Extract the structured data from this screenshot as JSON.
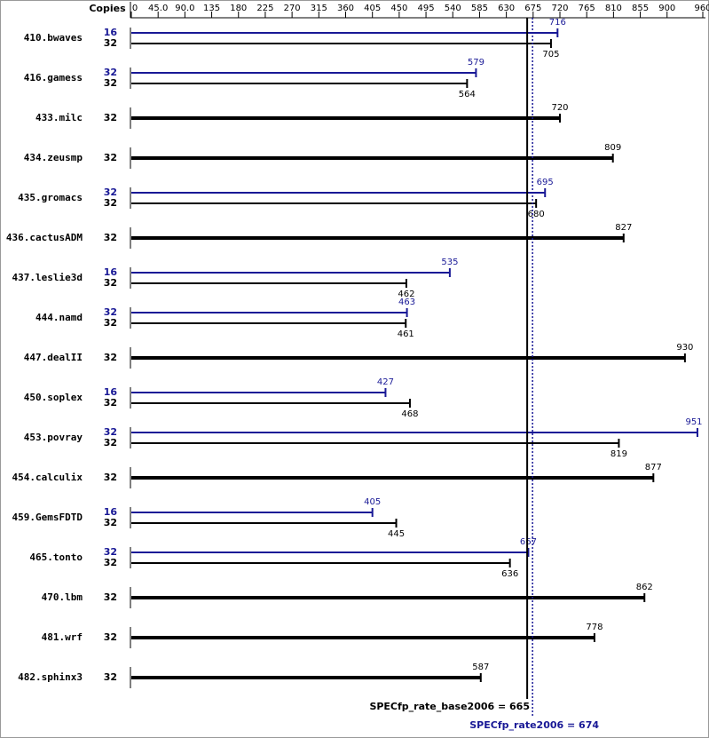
{
  "chart_data": {
    "type": "bar",
    "orientation": "horizontal",
    "copies_label": "Copies",
    "categories": [
      "410.bwaves",
      "416.gamess",
      "433.milc",
      "434.zeusmp",
      "435.gromacs",
      "436.cactusADM",
      "437.leslie3d",
      "444.namd",
      "447.dealII",
      "450.soplex",
      "453.povray",
      "454.calculix",
      "459.GemsFDTD",
      "465.tonto",
      "470.lbm",
      "481.wrf",
      "482.sphinx3"
    ],
    "series": [
      {
        "color": "#191996",
        "copies": [
          16,
          32,
          null,
          null,
          32,
          null,
          16,
          32,
          null,
          16,
          32,
          null,
          16,
          32,
          null,
          null,
          null
        ],
        "values": [
          716,
          579,
          null,
          null,
          695,
          null,
          535,
          463,
          null,
          427,
          951,
          null,
          405,
          667,
          null,
          null,
          null
        ]
      },
      {
        "color": "#000000",
        "copies": [
          32,
          32,
          32,
          32,
          32,
          32,
          32,
          32,
          32,
          32,
          32,
          32,
          32,
          32,
          32,
          32,
          32
        ],
        "values": [
          705,
          564,
          720,
          809,
          680,
          827,
          462,
          461,
          930,
          468,
          819,
          877,
          445,
          636,
          862,
          778,
          587
        ]
      }
    ],
    "xlim": [
      0,
      960
    ],
    "xticks": [
      0,
      {
        "value": 45,
        "label": "45.0"
      },
      {
        "value": 90,
        "label": "90.0"
      },
      135,
      180,
      225,
      270,
      315,
      360,
      405,
      450,
      495,
      540,
      585,
      630,
      675,
      720,
      765,
      810,
      855,
      900,
      960
    ],
    "reference_lines": [
      {
        "value": 665,
        "label": "SPECfp_rate_base2006 = 665",
        "color": "#000000",
        "style": "solid"
      },
      {
        "value": 674,
        "label": "SPECfp_rate2006 = 674",
        "color": "#191996",
        "style": "dotted"
      }
    ]
  }
}
